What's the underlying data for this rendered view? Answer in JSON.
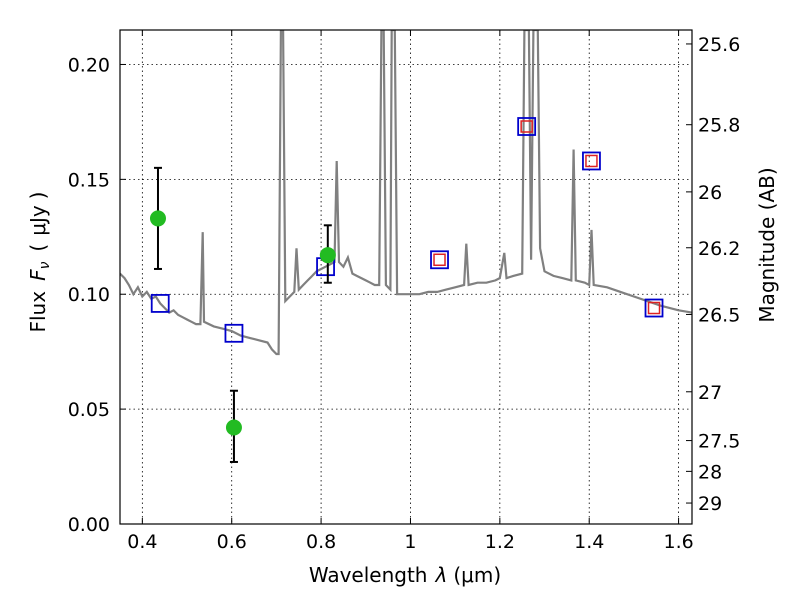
{
  "chart_data": {
    "type": "line",
    "title": "",
    "xlabel": "Wavelength",
    "xlabel_symbol": "λ",
    "xlabel_unit": "(μm)",
    "ylabel": "Flux",
    "ylabel_symbol": "F",
    "ylabel_subscript": "ν",
    "ylabel_open": "(",
    "ylabel_unit": "μJy",
    "ylabel_close": ")",
    "y2label": "Magnitude (AB)",
    "xlim": [
      0.35,
      1.63
    ],
    "ylim": [
      0,
      0.215
    ],
    "grid": true,
    "x_ticks": [
      0.4,
      0.6,
      0.8,
      1.0,
      1.2,
      1.4,
      1.6
    ],
    "x_tick_labels": [
      "0.4",
      "0.6",
      "0.8",
      "1",
      "1.2",
      "1.4",
      "1.6"
    ],
    "y_ticks": [
      0,
      0.05,
      0.1,
      0.15,
      0.2
    ],
    "y_tick_labels": [
      "0.00",
      "0.05",
      "0.10",
      "0.15",
      "0.20"
    ],
    "y2_ticks": [
      {
        "label": "25.6",
        "mag": 25.6
      },
      {
        "label": "25.8",
        "mag": 25.8
      },
      {
        "label": "26",
        "mag": 26.0
      },
      {
        "label": "26.2",
        "mag": 26.2
      },
      {
        "label": "26.5",
        "mag": 26.5
      },
      {
        "label": "27",
        "mag": 27.0
      },
      {
        "label": "27.5",
        "mag": 27.5
      },
      {
        "label": "28",
        "mag": 28.0
      },
      {
        "label": "29",
        "mag": 29.0
      }
    ],
    "colors": {
      "model": "#808080",
      "observed": "#22bb22",
      "model_box": "#0000cc",
      "inner_box": "#dd2222",
      "errorbar": "#000000"
    },
    "model_spectrum": [
      [
        0.35,
        0.109
      ],
      [
        0.36,
        0.107
      ],
      [
        0.37,
        0.104
      ],
      [
        0.38,
        0.1
      ],
      [
        0.39,
        0.103
      ],
      [
        0.4,
        0.099
      ],
      [
        0.41,
        0.101
      ],
      [
        0.42,
        0.098
      ],
      [
        0.43,
        0.099
      ],
      [
        0.44,
        0.096
      ],
      [
        0.45,
        0.094
      ],
      [
        0.46,
        0.092
      ],
      [
        0.47,
        0.093
      ],
      [
        0.48,
        0.091
      ],
      [
        0.49,
        0.09
      ],
      [
        0.5,
        0.089
      ],
      [
        0.51,
        0.088
      ],
      [
        0.52,
        0.087
      ],
      [
        0.53,
        0.087
      ],
      [
        0.535,
        0.127
      ],
      [
        0.538,
        0.088
      ],
      [
        0.56,
        0.086
      ],
      [
        0.58,
        0.085
      ],
      [
        0.6,
        0.084
      ],
      [
        0.62,
        0.082
      ],
      [
        0.64,
        0.081
      ],
      [
        0.66,
        0.08
      ],
      [
        0.68,
        0.079
      ],
      [
        0.69,
        0.076
      ],
      [
        0.7,
        0.074
      ],
      [
        0.705,
        0.074
      ],
      [
        0.71,
        0.215
      ],
      [
        0.715,
        0.215
      ],
      [
        0.72,
        0.097
      ],
      [
        0.73,
        0.099
      ],
      [
        0.74,
        0.101
      ],
      [
        0.745,
        0.12
      ],
      [
        0.75,
        0.102
      ],
      [
        0.76,
        0.104
      ],
      [
        0.77,
        0.106
      ],
      [
        0.78,
        0.108
      ],
      [
        0.79,
        0.11
      ],
      [
        0.8,
        0.111
      ],
      [
        0.81,
        0.112
      ],
      [
        0.82,
        0.113
      ],
      [
        0.83,
        0.114
      ],
      [
        0.835,
        0.158
      ],
      [
        0.84,
        0.114
      ],
      [
        0.85,
        0.112
      ],
      [
        0.86,
        0.116
      ],
      [
        0.87,
        0.109
      ],
      [
        0.88,
        0.108
      ],
      [
        0.89,
        0.107
      ],
      [
        0.9,
        0.106
      ],
      [
        0.91,
        0.105
      ],
      [
        0.92,
        0.104
      ],
      [
        0.93,
        0.104
      ],
      [
        0.935,
        0.215
      ],
      [
        0.94,
        0.215
      ],
      [
        0.945,
        0.104
      ],
      [
        0.955,
        0.102
      ],
      [
        0.958,
        0.215
      ],
      [
        0.965,
        0.215
      ],
      [
        0.97,
        0.1
      ],
      [
        0.98,
        0.1
      ],
      [
        1.0,
        0.1
      ],
      [
        1.02,
        0.1
      ],
      [
        1.04,
        0.101
      ],
      [
        1.06,
        0.101
      ],
      [
        1.08,
        0.102
      ],
      [
        1.1,
        0.103
      ],
      [
        1.12,
        0.104
      ],
      [
        1.125,
        0.122
      ],
      [
        1.13,
        0.104
      ],
      [
        1.15,
        0.105
      ],
      [
        1.17,
        0.105
      ],
      [
        1.19,
        0.106
      ],
      [
        1.2,
        0.107
      ],
      [
        1.21,
        0.118
      ],
      [
        1.215,
        0.107
      ],
      [
        1.23,
        0.108
      ],
      [
        1.25,
        0.109
      ],
      [
        1.255,
        0.215
      ],
      [
        1.265,
        0.215
      ],
      [
        1.27,
        0.115
      ],
      [
        1.275,
        0.215
      ],
      [
        1.285,
        0.215
      ],
      [
        1.29,
        0.12
      ],
      [
        1.3,
        0.11
      ],
      [
        1.32,
        0.108
      ],
      [
        1.34,
        0.107
      ],
      [
        1.36,
        0.106
      ],
      [
        1.365,
        0.163
      ],
      [
        1.37,
        0.106
      ],
      [
        1.39,
        0.105
      ],
      [
        1.4,
        0.104
      ],
      [
        1.405,
        0.128
      ],
      [
        1.41,
        0.104
      ],
      [
        1.44,
        0.103
      ],
      [
        1.47,
        0.101
      ],
      [
        1.5,
        0.099
      ],
      [
        1.53,
        0.097
      ],
      [
        1.56,
        0.095
      ],
      [
        1.6,
        0.093
      ],
      [
        1.63,
        0.092
      ]
    ],
    "model_points": [
      {
        "x": 0.44,
        "y": 0.096
      },
      {
        "x": 0.605,
        "y": 0.083
      },
      {
        "x": 0.81,
        "y": 0.112
      },
      {
        "x": 1.065,
        "y": 0.115
      },
      {
        "x": 1.26,
        "y": 0.173
      },
      {
        "x": 1.405,
        "y": 0.158
      },
      {
        "x": 1.545,
        "y": 0.094
      }
    ],
    "inner_points": [
      {
        "x": 1.065,
        "y": 0.115
      },
      {
        "x": 1.26,
        "y": 0.173
      },
      {
        "x": 1.405,
        "y": 0.158
      },
      {
        "x": 1.545,
        "y": 0.094
      }
    ],
    "observed_points": [
      {
        "x": 0.435,
        "y": 0.133,
        "err_low": 0.111,
        "err_high": 0.155
      },
      {
        "x": 0.605,
        "y": 0.042,
        "err_low": 0.027,
        "err_high": 0.058
      },
      {
        "x": 0.815,
        "y": 0.117,
        "err_low": 0.105,
        "err_high": 0.13
      }
    ]
  }
}
